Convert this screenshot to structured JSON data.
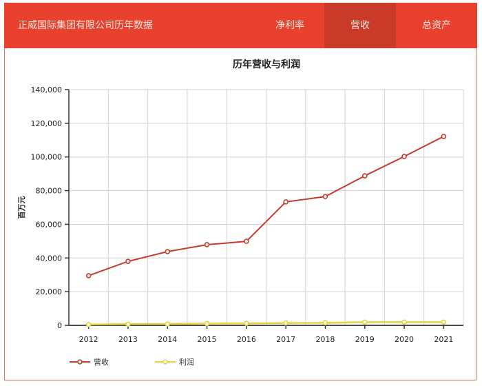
{
  "header": {
    "title": "正威国际集团有限公司历年数据",
    "tabs": [
      {
        "label": "净利率",
        "active": false
      },
      {
        "label": "营收",
        "active": true
      },
      {
        "label": "总资产",
        "active": false
      }
    ]
  },
  "colors": {
    "header_bg": "#e8412e",
    "active_tab_bg": "#c93a28",
    "revenue": "#c9392a",
    "profit": "#e8d43a",
    "grid": "#d0d0d0"
  },
  "chart_data": {
    "type": "line",
    "title": "历年营收与利润",
    "xlabel": "",
    "ylabel": "百万元",
    "categories": [
      "2012",
      "2013",
      "2014",
      "2015",
      "2016",
      "2017",
      "2018",
      "2019",
      "2020",
      "2021"
    ],
    "ylim": [
      0,
      140000
    ],
    "yticks": [
      0,
      20000,
      40000,
      60000,
      80000,
      100000,
      120000,
      140000
    ],
    "ytick_labels": [
      "0",
      "20,000",
      "40,000",
      "60,000",
      "80,000",
      "100,000",
      "120,000",
      "140,000"
    ],
    "grid": true,
    "legend_position": "bottom-left",
    "series": [
      {
        "name": "营收",
        "color": "#c9392a",
        "values": [
          29500,
          38000,
          43800,
          47900,
          49900,
          73300,
          76500,
          88800,
          100300,
          112200
        ]
      },
      {
        "name": "利润",
        "color": "#e8d43a",
        "values": [
          500,
          700,
          800,
          1100,
          1200,
          1400,
          1500,
          1900,
          1900,
          1900
        ]
      }
    ]
  }
}
